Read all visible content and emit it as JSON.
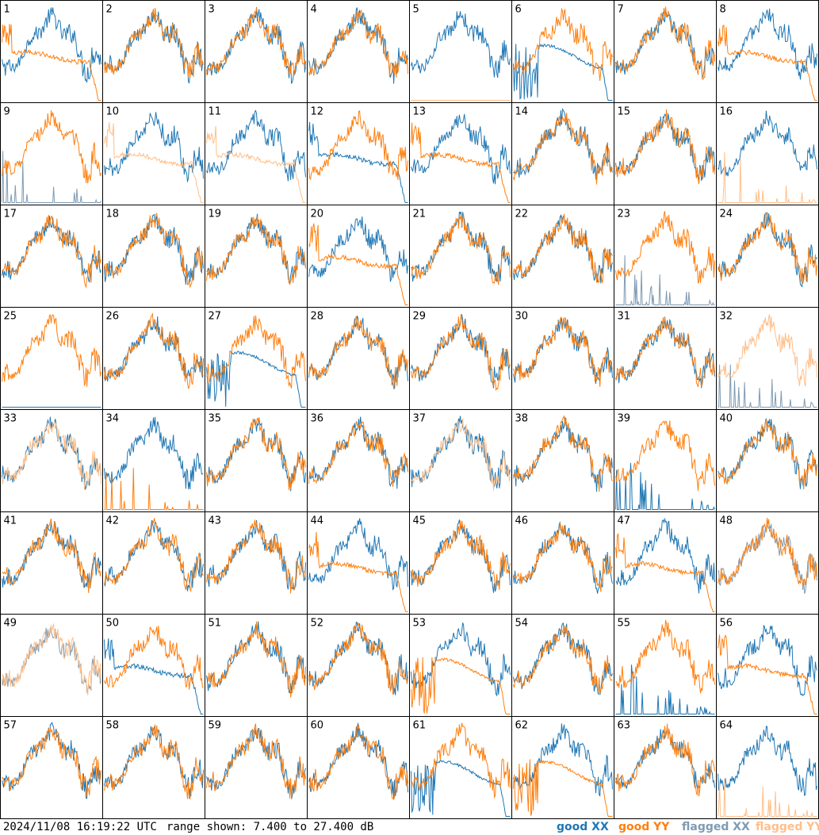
{
  "chart_data": {
    "type": "line",
    "panel_count": 64,
    "columns": 8,
    "rows": 8,
    "panels": [
      {
        "label": "1",
        "xx": "good",
        "yy": "good",
        "xx_shape": "A",
        "yy_shape": "D"
      },
      {
        "label": "2",
        "xx": "good",
        "yy": "good",
        "xx_shape": "A",
        "yy_shape": "A"
      },
      {
        "label": "3",
        "xx": "good",
        "yy": "good",
        "xx_shape": "A",
        "yy_shape": "A"
      },
      {
        "label": "4",
        "xx": "good",
        "yy": "good",
        "xx_shape": "A",
        "yy_shape": "A"
      },
      {
        "label": "5",
        "xx": "good",
        "yy": "flagged",
        "xx_shape": "A",
        "yy_shape": "F"
      },
      {
        "label": "6",
        "xx": "good",
        "yy": "good",
        "xx_shape": "E",
        "yy_shape": "A"
      },
      {
        "label": "7",
        "xx": "good",
        "yy": "good",
        "xx_shape": "A",
        "yy_shape": "A"
      },
      {
        "label": "8",
        "xx": "good",
        "yy": "good",
        "xx_shape": "A",
        "yy_shape": "D"
      },
      {
        "label": "9",
        "xx": "flagged",
        "yy": "good",
        "xx_shape": "S",
        "yy_shape": "A"
      },
      {
        "label": "10",
        "xx": "good",
        "yy": "flagged",
        "xx_shape": "A",
        "yy_shape": "D"
      },
      {
        "label": "11",
        "xx": "good",
        "yy": "flagged",
        "xx_shape": "A",
        "yy_shape": "D"
      },
      {
        "label": "12",
        "xx": "good",
        "yy": "good",
        "xx_shape": "D",
        "yy_shape": "A"
      },
      {
        "label": "13",
        "xx": "good",
        "yy": "good",
        "xx_shape": "A",
        "yy_shape": "D"
      },
      {
        "label": "14",
        "xx": "good",
        "yy": "good",
        "xx_shape": "A",
        "yy_shape": "A"
      },
      {
        "label": "15",
        "xx": "good",
        "yy": "good",
        "xx_shape": "A",
        "yy_shape": "A"
      },
      {
        "label": "16",
        "xx": "good",
        "yy": "flagged",
        "xx_shape": "A",
        "yy_shape": "S"
      },
      {
        "label": "17",
        "xx": "good",
        "yy": "good",
        "xx_shape": "A",
        "yy_shape": "A"
      },
      {
        "label": "18",
        "xx": "good",
        "yy": "good",
        "xx_shape": "A",
        "yy_shape": "A"
      },
      {
        "label": "19",
        "xx": "good",
        "yy": "good",
        "xx_shape": "A",
        "yy_shape": "A"
      },
      {
        "label": "20",
        "xx": "good",
        "yy": "good",
        "xx_shape": "A",
        "yy_shape": "D"
      },
      {
        "label": "21",
        "xx": "good",
        "yy": "good",
        "xx_shape": "A",
        "yy_shape": "A"
      },
      {
        "label": "22",
        "xx": "good",
        "yy": "good",
        "xx_shape": "A",
        "yy_shape": "A"
      },
      {
        "label": "23",
        "xx": "flagged",
        "yy": "good",
        "xx_shape": "S",
        "yy_shape": "A"
      },
      {
        "label": "24",
        "xx": "good",
        "yy": "good",
        "xx_shape": "A",
        "yy_shape": "A"
      },
      {
        "label": "25",
        "xx": "good",
        "yy": "good",
        "xx_shape": "F",
        "yy_shape": "A"
      },
      {
        "label": "26",
        "xx": "good",
        "yy": "good",
        "xx_shape": "A",
        "yy_shape": "A"
      },
      {
        "label": "27",
        "xx": "good",
        "yy": "good",
        "xx_shape": "E",
        "yy_shape": "A"
      },
      {
        "label": "28",
        "xx": "good",
        "yy": "good",
        "xx_shape": "A",
        "yy_shape": "A"
      },
      {
        "label": "29",
        "xx": "good",
        "yy": "good",
        "xx_shape": "A",
        "yy_shape": "A"
      },
      {
        "label": "30",
        "xx": "good",
        "yy": "good",
        "xx_shape": "A",
        "yy_shape": "A"
      },
      {
        "label": "31",
        "xx": "good",
        "yy": "good",
        "xx_shape": "A",
        "yy_shape": "A"
      },
      {
        "label": "32",
        "xx": "flagged",
        "yy": "flagged",
        "xx_shape": "S",
        "yy_shape": "A"
      },
      {
        "label": "33",
        "xx": "good",
        "yy": "flagged",
        "xx_shape": "A",
        "yy_shape": "A"
      },
      {
        "label": "34",
        "xx": "good",
        "yy": "good",
        "xx_shape": "A",
        "yy_shape": "S"
      },
      {
        "label": "35",
        "xx": "good",
        "yy": "good",
        "xx_shape": "A",
        "yy_shape": "A"
      },
      {
        "label": "36",
        "xx": "good",
        "yy": "good",
        "xx_shape": "A",
        "yy_shape": "A"
      },
      {
        "label": "37",
        "xx": "good",
        "yy": "flagged",
        "xx_shape": "A",
        "yy_shape": "A"
      },
      {
        "label": "38",
        "xx": "good",
        "yy": "good",
        "xx_shape": "A",
        "yy_shape": "A"
      },
      {
        "label": "39",
        "xx": "good",
        "yy": "good",
        "xx_shape": "S",
        "yy_shape": "A"
      },
      {
        "label": "40",
        "xx": "good",
        "yy": "good",
        "xx_shape": "A",
        "yy_shape": "A"
      },
      {
        "label": "41",
        "xx": "good",
        "yy": "good",
        "xx_shape": "A",
        "yy_shape": "A"
      },
      {
        "label": "42",
        "xx": "good",
        "yy": "good",
        "xx_shape": "A",
        "yy_shape": "A"
      },
      {
        "label": "43",
        "xx": "good",
        "yy": "good",
        "xx_shape": "A",
        "yy_shape": "A"
      },
      {
        "label": "44",
        "xx": "good",
        "yy": "good",
        "xx_shape": "A",
        "yy_shape": "D"
      },
      {
        "label": "45",
        "xx": "good",
        "yy": "good",
        "xx_shape": "A",
        "yy_shape": "A"
      },
      {
        "label": "46",
        "xx": "good",
        "yy": "good",
        "xx_shape": "A",
        "yy_shape": "A"
      },
      {
        "label": "47",
        "xx": "good",
        "yy": "good",
        "xx_shape": "A",
        "yy_shape": "D"
      },
      {
        "label": "48",
        "xx": "flagged",
        "yy": "good",
        "xx_shape": "A",
        "yy_shape": "A"
      },
      {
        "label": "49",
        "xx": "flagged",
        "yy": "flagged",
        "xx_shape": "A",
        "yy_shape": "A"
      },
      {
        "label": "50",
        "xx": "good",
        "yy": "good",
        "xx_shape": "D",
        "yy_shape": "A"
      },
      {
        "label": "51",
        "xx": "good",
        "yy": "good",
        "xx_shape": "A",
        "yy_shape": "A"
      },
      {
        "label": "52",
        "xx": "good",
        "yy": "good",
        "xx_shape": "A",
        "yy_shape": "A"
      },
      {
        "label": "53",
        "xx": "good",
        "yy": "good",
        "xx_shape": "A",
        "yy_shape": "E"
      },
      {
        "label": "54",
        "xx": "good",
        "yy": "good",
        "xx_shape": "A",
        "yy_shape": "A"
      },
      {
        "label": "55",
        "xx": "good",
        "yy": "good",
        "xx_shape": "S",
        "yy_shape": "A"
      },
      {
        "label": "56",
        "xx": "good",
        "yy": "good",
        "xx_shape": "A",
        "yy_shape": "D"
      },
      {
        "label": "57",
        "xx": "good",
        "yy": "good",
        "xx_shape": "A",
        "yy_shape": "A"
      },
      {
        "label": "58",
        "xx": "good",
        "yy": "good",
        "xx_shape": "A",
        "yy_shape": "A"
      },
      {
        "label": "59",
        "xx": "good",
        "yy": "good",
        "xx_shape": "A",
        "yy_shape": "A"
      },
      {
        "label": "60",
        "xx": "good",
        "yy": "good",
        "xx_shape": "A",
        "yy_shape": "A"
      },
      {
        "label": "61",
        "xx": "good",
        "yy": "good",
        "xx_shape": "E",
        "yy_shape": "A"
      },
      {
        "label": "62",
        "xx": "good",
        "yy": "good",
        "xx_shape": "A",
        "yy_shape": "E"
      },
      {
        "label": "63",
        "xx": "good",
        "yy": "good",
        "xx_shape": "A",
        "yy_shape": "A"
      },
      {
        "label": "64",
        "xx": "good",
        "yy": "flagged",
        "xx_shape": "A",
        "yy_shape": "S"
      }
    ],
    "ylim": [
      7.4,
      27.4
    ],
    "yunit": "dB",
    "grid": false,
    "legend_placement": "bottom-right"
  },
  "footer": {
    "timestamp": "2024/11/08 16:19:22 UTC",
    "range": "range shown: 7.400 to 27.400 dB"
  },
  "legend": {
    "good_xx": "good XX",
    "good_yy": "good YY",
    "flagged_xx": "flagged XX",
    "flagged_yy": "flagged YY"
  },
  "colors": {
    "good_xx": "#1f77b4",
    "good_yy": "#ff7f0e",
    "flagged_xx": "#7f9bb3",
    "flagged_yy": "#ffbf8a",
    "border": "#000000"
  }
}
